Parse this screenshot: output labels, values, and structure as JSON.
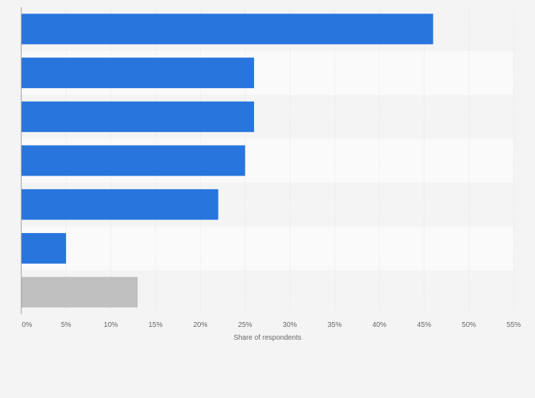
{
  "chart_data": {
    "type": "bar",
    "orientation": "horizontal",
    "title": "",
    "xlabel": "Share of respondents",
    "ylabel": "",
    "xlim": [
      0,
      55
    ],
    "xticks": [
      "0%",
      "5%",
      "10%",
      "15%",
      "20%",
      "25%",
      "30%",
      "35%",
      "40%",
      "45%",
      "50%",
      "55%"
    ],
    "categories": [
      "",
      "",
      "",
      "",
      "",
      "",
      ""
    ],
    "values": [
      46,
      26,
      26,
      25,
      22,
      5,
      13
    ],
    "colors": [
      "#2876dd",
      "#2876dd",
      "#2876dd",
      "#2876dd",
      "#2876dd",
      "#2876dd",
      "#c0c0c0"
    ],
    "grid": true,
    "legend": "none"
  }
}
